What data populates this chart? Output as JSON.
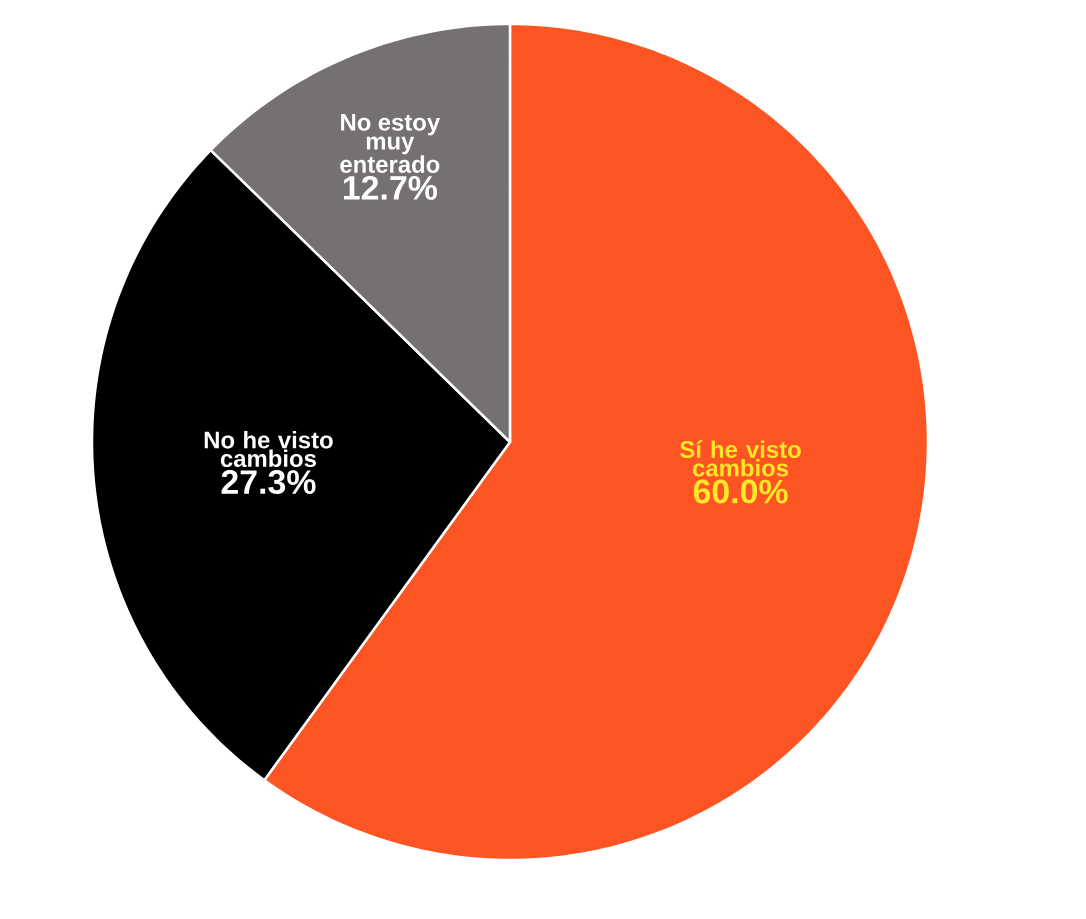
{
  "chart_data": {
    "type": "pie",
    "categories": [
      "Sí he visto cambios",
      "No he visto cambios",
      "No estoy muy enterado"
    ],
    "values": [
      60.0,
      27.3,
      12.7
    ],
    "colors": [
      "#fc5523",
      "#000000",
      "#757170"
    ],
    "value_labels": [
      "60.0%",
      "27.3%",
      "12.7%"
    ]
  }
}
